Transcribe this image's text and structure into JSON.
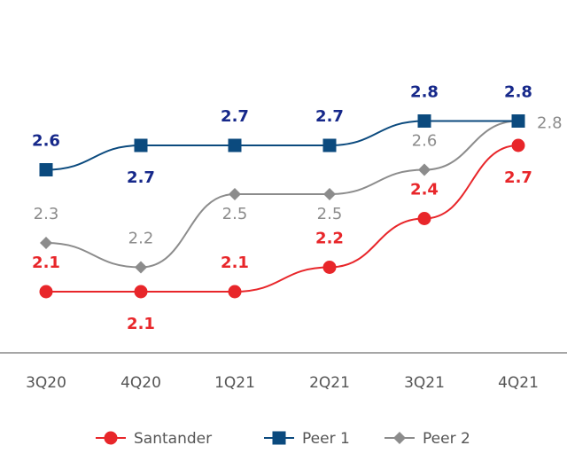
{
  "chart_data": {
    "type": "line",
    "title": "",
    "xlabel": "",
    "ylabel": "",
    "categories": [
      "3Q20",
      "4Q20",
      "1Q21",
      "2Q21",
      "3Q21",
      "4Q21"
    ],
    "grid": false,
    "legend_position": "bottom",
    "series": [
      {
        "name": "Santander",
        "values": [
          2.1,
          2.1,
          2.1,
          2.2,
          2.4,
          2.7
        ],
        "color": "#e8262a",
        "label_color": "#e8262a",
        "marker": "circle",
        "label_weight": "bold"
      },
      {
        "name": "Peer 1",
        "values": [
          2.6,
          2.7,
          2.7,
          2.7,
          2.8,
          2.8
        ],
        "color": "#0b4a7e",
        "label_color": "#16288a",
        "marker": "square",
        "label_weight": "bold"
      },
      {
        "name": "Peer 2",
        "values": [
          2.3,
          2.2,
          2.5,
          2.5,
          2.6,
          2.8
        ],
        "color": "#8c8c8c",
        "label_color": "#8c8c8c",
        "marker": "diamond",
        "label_weight": "normal"
      }
    ],
    "axis_color": "#888888"
  }
}
